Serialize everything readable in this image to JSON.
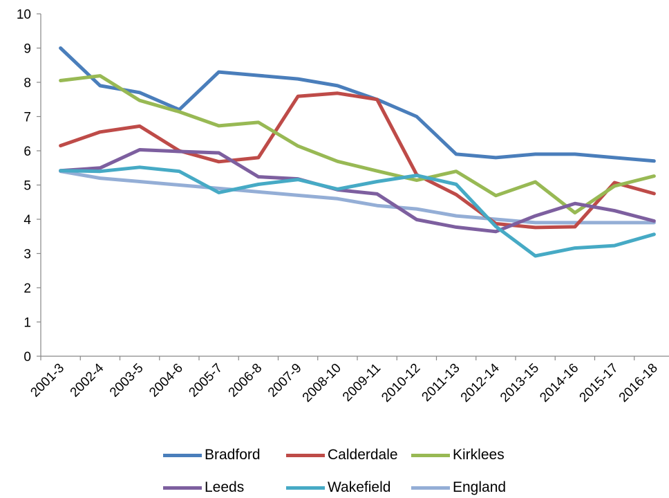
{
  "chart_data": {
    "type": "line",
    "title": "",
    "xlabel": "",
    "ylabel": "",
    "ylim": [
      0,
      10
    ],
    "yticks": [
      "0",
      "1",
      "2",
      "3",
      "4",
      "5",
      "6",
      "7",
      "8",
      "9",
      "10"
    ],
    "grid": false,
    "legend_position": "bottom",
    "categories": [
      "2001-3",
      "2002-4",
      "2003-5",
      "2004-6",
      "2005-7",
      "2006-8",
      "2007-9",
      "2008-10",
      "2009-11",
      "2010-12",
      "2011-13",
      "2012-14",
      "2013-15",
      "2014-16",
      "2015-17",
      "2016-18"
    ],
    "series": [
      {
        "name": "Bradford",
        "color": "#4a7ebb",
        "values": [
          9.0,
          7.9,
          7.7,
          7.2,
          8.3,
          8.2,
          8.1,
          7.9,
          7.5,
          7.0,
          5.9,
          5.8,
          5.9,
          5.9,
          5.8,
          5.7
        ]
      },
      {
        "name": "Calderdale",
        "color": "#be4b48",
        "values": [
          6.15,
          6.55,
          6.72,
          6.0,
          5.68,
          5.8,
          7.59,
          7.68,
          7.5,
          5.3,
          4.72,
          3.87,
          3.76,
          3.78,
          5.07,
          4.75
        ]
      },
      {
        "name": "Kirklees",
        "color": "#98b954",
        "values": [
          8.05,
          8.19,
          7.47,
          7.14,
          6.73,
          6.83,
          6.14,
          5.69,
          5.41,
          5.14,
          5.4,
          4.69,
          5.09,
          4.19,
          4.97,
          5.26
        ]
      },
      {
        "name": "Leeds",
        "color": "#7d5f9f",
        "values": [
          5.42,
          5.5,
          6.03,
          5.98,
          5.94,
          5.24,
          5.18,
          4.86,
          4.74,
          3.99,
          3.77,
          3.64,
          4.1,
          4.46,
          4.25,
          3.95
        ]
      },
      {
        "name": "Wakefield",
        "color": "#46aac5",
        "values": [
          5.42,
          5.4,
          5.52,
          5.4,
          4.78,
          5.02,
          5.16,
          4.88,
          5.1,
          5.28,
          5.02,
          3.79,
          2.93,
          3.16,
          3.23,
          3.56
        ]
      },
      {
        "name": "England",
        "color": "#94aed6",
        "values": [
          5.4,
          5.2,
          5.1,
          5.0,
          4.9,
          4.8,
          4.7,
          4.6,
          4.4,
          4.3,
          4.1,
          4.0,
          3.9,
          3.9,
          3.9,
          3.9
        ]
      }
    ]
  }
}
